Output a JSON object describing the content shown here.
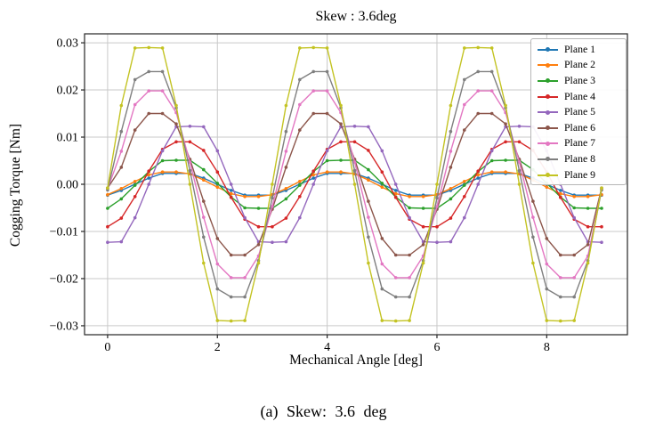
{
  "title": "Skew : 3.6deg",
  "caption": "(a) Skew: 3.6 deg",
  "xlabel": "Mechanical Angle [deg]",
  "ylabel": "Cogging Torque [Nm]",
  "colors": {
    "grid": "#c9c9c9",
    "axis": "#262626",
    "background": "#ffffff"
  },
  "chart_data": {
    "type": "line",
    "title": "Skew : 3.6deg",
    "xlabel": "Mechanical Angle [deg]",
    "ylabel": "Cogging Torque [Nm]",
    "grid": true,
    "legend_position": "upper right",
    "xlim": [
      -0.42,
      9.47
    ],
    "ylim": [
      -0.0319,
      0.0319
    ],
    "xticks": [
      0,
      2,
      4,
      6,
      8
    ],
    "xtick_labels": [
      "0",
      "2",
      "4",
      "6",
      "8"
    ],
    "yticks": [
      -0.03,
      -0.02,
      -0.01,
      0.0,
      0.01,
      0.02,
      0.03
    ],
    "ytick_labels": [
      "−0.03",
      "−0.02",
      "−0.01",
      "0.00",
      "0.01",
      "0.02",
      "0.03"
    ],
    "x_step_deg": 0.25,
    "x": [
      0,
      0.25,
      0.5,
      0.75,
      1,
      1.25,
      1.5,
      1.75,
      2,
      2.25,
      2.5,
      2.75,
      3,
      3.25,
      3.5,
      3.75,
      4,
      4.25,
      4.5,
      4.75,
      5,
      5.25,
      5.5,
      5.75,
      6,
      6.25,
      6.5,
      6.75,
      7,
      7.25,
      7.5,
      7.75,
      8,
      8.25,
      8.5,
      8.75,
      9
    ],
    "series": [
      {
        "name": "Plane 1",
        "color": "#1f77b4",
        "values": [
          -0.0023,
          -0.0013,
          0.0,
          0.0013,
          0.0023,
          0.0023,
          0.0023,
          0.0013,
          0.0,
          -0.0013,
          -0.0023,
          -0.0023,
          -0.0023,
          -0.0013,
          0.0,
          0.0013,
          0.0023,
          0.0023,
          0.0023,
          0.0013,
          0.0,
          -0.0013,
          -0.0023,
          -0.0023,
          -0.0023,
          -0.0013,
          0.0,
          0.0013,
          0.0023,
          0.0023,
          0.0023,
          0.0013,
          0.0,
          -0.0013,
          -0.0023,
          -0.0023,
          -0.0023
        ]
      },
      {
        "name": "Plane 2",
        "color": "#ff7f0e",
        "values": [
          -0.0022,
          -0.0009,
          0.0006,
          0.002,
          0.0026,
          0.0026,
          0.0022,
          0.0009,
          -0.0006,
          -0.002,
          -0.0026,
          -0.0026,
          -0.0022,
          -0.0009,
          0.0006,
          0.002,
          0.0026,
          0.0026,
          0.0022,
          0.0009,
          -0.0006,
          -0.002,
          -0.0026,
          -0.0026,
          -0.0022,
          -0.0009,
          0.0006,
          0.002,
          0.0026,
          0.0026,
          0.0022,
          0.0009,
          -0.0006,
          -0.002,
          -0.0026,
          -0.0026,
          -0.0022
        ]
      },
      {
        "name": "Plane 3",
        "color": "#2ca02c",
        "values": [
          -0.0051,
          -0.0031,
          -0.0002,
          0.0027,
          0.005,
          0.0051,
          0.0051,
          0.0031,
          0.0002,
          -0.0027,
          -0.005,
          -0.0051,
          -0.0051,
          -0.0031,
          -0.0002,
          0.0027,
          0.005,
          0.0051,
          0.0051,
          0.0031,
          0.0002,
          -0.0027,
          -0.005,
          -0.0051,
          -0.0051,
          -0.0031,
          -0.0002,
          0.0027,
          0.005,
          0.0051,
          0.0051,
          0.0031,
          0.0002,
          -0.0027,
          -0.005,
          -0.0051,
          -0.0051
        ]
      },
      {
        "name": "Plane 4",
        "color": "#d62728",
        "values": [
          -0.009,
          -0.0072,
          -0.0026,
          0.0028,
          0.0074,
          0.009,
          0.009,
          0.0072,
          0.0026,
          -0.0028,
          -0.0074,
          -0.009,
          -0.009,
          -0.0072,
          -0.0026,
          0.0028,
          0.0074,
          0.009,
          0.009,
          0.0072,
          0.0026,
          -0.0028,
          -0.0074,
          -0.009,
          -0.009,
          -0.0072,
          -0.0026,
          0.0028,
          0.0074,
          0.009,
          0.009,
          0.0072,
          0.0026,
          -0.0028,
          -0.0074,
          -0.009,
          -0.009
        ]
      },
      {
        "name": "Plane 5",
        "color": "#9467bd",
        "values": [
          -0.0123,
          -0.0122,
          -0.0071,
          0.0,
          0.0071,
          0.0122,
          0.0123,
          0.0122,
          0.0071,
          0.0,
          -0.0071,
          -0.0122,
          -0.0123,
          -0.0122,
          -0.0071,
          0.0,
          0.0071,
          0.0122,
          0.0123,
          0.0122,
          0.0071,
          0.0,
          -0.0071,
          -0.0122,
          -0.0123,
          -0.0122,
          -0.0071,
          0.0,
          0.0071,
          0.0122,
          0.0123,
          0.0122,
          0.0071,
          0.0,
          -0.0071,
          -0.0122,
          -0.0123
        ]
      },
      {
        "name": "Plane 6",
        "color": "#8c564b",
        "values": [
          -0.0008,
          0.0036,
          0.0115,
          0.015,
          0.015,
          0.0128,
          0.0053,
          -0.0036,
          -0.0115,
          -0.015,
          -0.015,
          -0.0128,
          -0.0053,
          0.0036,
          0.0115,
          0.015,
          0.015,
          0.0128,
          0.0053,
          -0.0036,
          -0.0115,
          -0.015,
          -0.015,
          -0.0128,
          -0.0053,
          0.0036,
          0.0115,
          0.015,
          0.015,
          0.0128,
          0.0053,
          -0.0036,
          -0.0115,
          -0.015,
          -0.015,
          -0.0128,
          -0.0008
        ]
      },
      {
        "name": "Plane 7",
        "color": "#e377c2",
        "values": [
          -0.001,
          0.007,
          0.0169,
          0.0198,
          0.0198,
          0.0152,
          0.0047,
          -0.007,
          -0.0169,
          -0.0198,
          -0.0198,
          -0.0152,
          -0.0047,
          0.007,
          0.0169,
          0.0198,
          0.0198,
          0.0152,
          0.0047,
          -0.007,
          -0.0169,
          -0.0198,
          -0.0198,
          -0.0152,
          -0.0047,
          0.007,
          0.0169,
          0.0198,
          0.0198,
          0.0152,
          0.0047,
          -0.007,
          -0.0169,
          -0.0198,
          -0.0198,
          -0.0152,
          -0.001
        ]
      },
      {
        "name": "Plane 8",
        "color": "#7f7f7f",
        "values": [
          -0.0012,
          0.0112,
          0.0222,
          0.0239,
          0.0239,
          0.0162,
          0.0029,
          -0.0112,
          -0.0222,
          -0.0239,
          -0.0239,
          -0.0162,
          -0.0029,
          0.0112,
          0.0222,
          0.0239,
          0.0239,
          0.0162,
          0.0029,
          -0.0112,
          -0.0222,
          -0.0239,
          -0.0239,
          -0.0162,
          -0.0029,
          0.0112,
          0.0222,
          0.0239,
          0.0239,
          0.0162,
          0.0029,
          -0.0112,
          -0.0222,
          -0.0239,
          -0.0239,
          -0.0162,
          -0.0012
        ]
      },
      {
        "name": "Plane 9",
        "color": "#c3c322",
        "values": [
          -0.0008,
          0.0167,
          0.0289,
          0.029,
          0.0289,
          0.0167,
          0.0,
          -0.0167,
          -0.0289,
          -0.029,
          -0.0289,
          -0.0167,
          0.0,
          0.0167,
          0.0289,
          0.029,
          0.0289,
          0.0167,
          0.0,
          -0.0167,
          -0.0289,
          -0.029,
          -0.0289,
          -0.0167,
          0.0,
          0.0167,
          0.0289,
          0.029,
          0.0289,
          0.0167,
          0.0,
          -0.0167,
          -0.0289,
          -0.029,
          -0.0289,
          -0.0167,
          -0.0008
        ]
      }
    ]
  }
}
